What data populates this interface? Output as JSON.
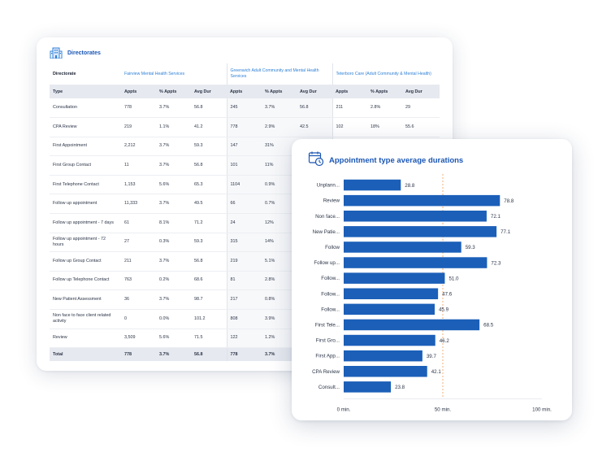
{
  "directorates": {
    "title": "Directorates",
    "icon": "building-icon",
    "directorate_label": "Directorate",
    "groups": [
      "Fairview Mental Health Services",
      "Greenwich Adult Community and Mental Health Services",
      "Teterboro Care (Adult Community & Mental Health)"
    ],
    "columns": [
      "Type",
      "Appts",
      "% Appts",
      "Avg Dur",
      "Appts",
      "% Appts",
      "Avg Dur",
      "Appts",
      "% Appts",
      "Avg Dur"
    ],
    "rows": [
      [
        "Consultation",
        "778",
        "3.7%",
        "56.8",
        "245",
        "3.7%",
        "56.8",
        "211",
        "2.8%",
        "29"
      ],
      [
        "CPA Review",
        "219",
        "1.1%",
        "41.2",
        "778",
        "2.9%",
        "42.5",
        "102",
        "18%",
        "55.6"
      ],
      [
        "First Appointment",
        "2,212",
        "3.7%",
        "59.3",
        "147",
        "31%",
        "",
        "",
        "",
        ""
      ],
      [
        "First Group Contact",
        "11",
        "3.7%",
        "56.8",
        "101",
        "11%",
        "",
        "",
        "",
        ""
      ],
      [
        "First Telephone Contact",
        "1,153",
        "5.6%",
        "65.3",
        "1104",
        "0.9%",
        "",
        "",
        "",
        ""
      ],
      [
        "Follow up appointment",
        "11,333",
        "3.7%",
        "49.5",
        "66",
        "0.7%",
        "",
        "",
        "",
        ""
      ],
      [
        "Follow up appointment - 7 days",
        "61",
        "8.1%",
        "71.2",
        "24",
        "12%",
        "",
        "",
        "",
        ""
      ],
      [
        "Follow up appointment - 72 hours",
        "27",
        "0.3%",
        "59.3",
        "315",
        "14%",
        "",
        "",
        "",
        ""
      ],
      [
        "Follow up Group Contact",
        "211",
        "3.7%",
        "56.8",
        "219",
        "5.1%",
        "",
        "",
        "",
        ""
      ],
      [
        "Follow up Telephone Contact",
        "763",
        "0.2%",
        "68.6",
        "81",
        "2.8%",
        "",
        "",
        "",
        ""
      ],
      [
        "New Patient Assessment",
        "36",
        "3.7%",
        "98.7",
        "217",
        "0.8%",
        "",
        "",
        "",
        ""
      ],
      [
        "Non face to face client related activity",
        "0",
        "0.0%",
        "101.2",
        "808",
        "3.9%",
        "",
        "",
        "",
        ""
      ],
      [
        "Review",
        "3,509",
        "5.6%",
        "71.5",
        "122",
        "1.2%",
        "",
        "",
        "",
        ""
      ]
    ],
    "total": [
      "Total",
      "778",
      "3.7%",
      "56.8",
      "778",
      "3.7%",
      "",
      "",
      "",
      ""
    ]
  },
  "chart": {
    "title": "Appointment type average durations",
    "icon": "calendar-clock-icon"
  },
  "chart_data": {
    "type": "bar",
    "orientation": "horizontal",
    "title": "Appointment type average durations",
    "categories": [
      "Unplann...",
      "Review",
      "Non face...",
      "New Patie...",
      "Follow",
      "Follow up...",
      "Follow...",
      "Follow...",
      "Follow...",
      "First Tele...",
      "First Gro...",
      "First App...",
      "CPA Review",
      "Consult..."
    ],
    "values": [
      28.8,
      78.8,
      72.1,
      77.1,
      59.3,
      72.3,
      51.0,
      47.6,
      45.9,
      68.5,
      46.2,
      39.7,
      42.1,
      23.8
    ],
    "value_labels": [
      "28.8",
      "78.8",
      "72.1",
      "77.1",
      "59.3",
      "72.3",
      "51.0",
      "47.6",
      "45.9",
      "68.5",
      "46.2",
      "39.7",
      "42.1",
      "23.8"
    ],
    "xlim": [
      0,
      100
    ],
    "x_ticks": [
      0,
      50,
      100
    ],
    "x_tick_labels": [
      "0 min.",
      "50 min.",
      "100 min."
    ],
    "reference_line": 50,
    "bar_color": "#1b5fb8",
    "reference_color": "#f0b27a",
    "grid": false
  },
  "colors": {
    "accent": "#1a56b4",
    "link": "#2f80d6",
    "header_bg": "#e6e9ef"
  }
}
